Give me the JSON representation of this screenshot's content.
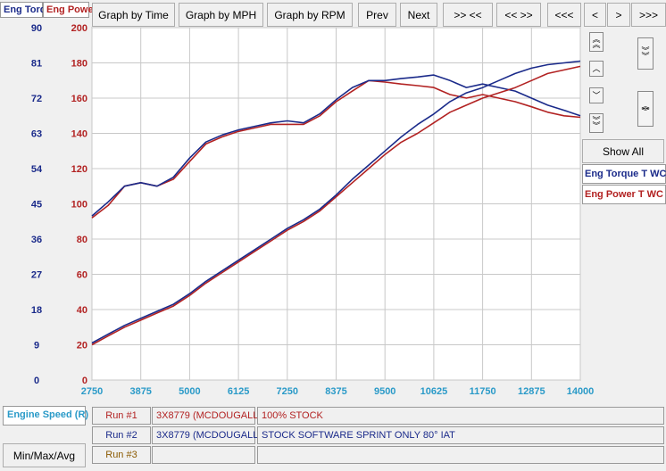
{
  "tabs": {
    "torque": "Eng Torq",
    "power": "Eng Powe"
  },
  "toolbar": {
    "time": "Graph by Time",
    "mph": "Graph by MPH",
    "rpm": "Graph by RPM",
    "prev": "Prev",
    "next": "Next",
    "b1": ">> <<",
    "b2": "<< >>",
    "b3": "<<<",
    "b4": "<",
    "b5": ">",
    "b6": ">>>"
  },
  "right_panel": {
    "show_all": "Show All",
    "legend_torque": "Eng Torque T WC",
    "legend_power": "Eng Power T WC"
  },
  "bottom": {
    "engine_speed": "Engine Speed (R)",
    "minmax": "Min/Max/Avg",
    "runs": [
      {
        "label": "Run #1",
        "id": "3X8779 (MCDOUGALL",
        "desc": "100% STOCK",
        "color": "#b22222"
      },
      {
        "label": "Run #2",
        "id": "3X8779 (MCDOUGALL",
        "desc": "STOCK SOFTWARE SPRINT ONLY 80° IAT",
        "color": "#1a2a8a"
      },
      {
        "label": "Run #3",
        "id": "",
        "desc": "",
        "color": "#8b5a00"
      }
    ]
  },
  "colors": {
    "torque_axis": "#1a2a8a",
    "power_axis": "#b22222",
    "x_axis": "#2a9ac8",
    "grid": "#c8c8c8"
  },
  "chart_data": {
    "type": "line",
    "x": [
      2750,
      3125,
      3500,
      3875,
      4250,
      4625,
      5000,
      5375,
      5750,
      6125,
      6500,
      6875,
      7250,
      7625,
      8000,
      8375,
      8750,
      9125,
      9500,
      9875,
      10250,
      10625,
      11000,
      11375,
      11750,
      12125,
      12500,
      12875,
      13250,
      13625,
      14000
    ],
    "xticks": [
      "2750",
      "3875",
      "5000",
      "6125",
      "7250",
      "8375",
      "9500",
      "10625",
      "11750",
      "12875",
      "14000"
    ],
    "xlim": [
      2750,
      14000
    ],
    "left_axis": {
      "ticks": [
        "90",
        "81",
        "72",
        "63",
        "54",
        "45",
        "36",
        "27",
        "18",
        "9",
        "0"
      ],
      "ylim": [
        0,
        90
      ]
    },
    "right_axis": {
      "ticks": [
        "200",
        "180",
        "160",
        "140",
        "120",
        "100",
        "80",
        "60",
        "40",
        "20",
        "0"
      ],
      "ylim": [
        0,
        200
      ]
    },
    "grid": true,
    "series": [
      {
        "name": "Eng Torque T WC",
        "axis": "left",
        "run": 1,
        "color": "#b22222",
        "values": [
          41.4,
          44.6,
          49.5,
          50.4,
          49.5,
          51.3,
          55.8,
          60.3,
          62.1,
          63.5,
          64.4,
          65.3,
          65.3,
          65.3,
          67.5,
          71.1,
          73.8,
          76.5,
          76.1,
          75.6,
          75.2,
          74.7,
          72.9,
          72,
          72.9,
          72,
          71.1,
          69.8,
          68.4,
          67.5,
          67.1
        ]
      },
      {
        "name": "Eng Torque T WC",
        "axis": "left",
        "run": 2,
        "color": "#1a2a8a",
        "values": [
          41.9,
          45.5,
          49.5,
          50.4,
          49.5,
          51.8,
          56.7,
          60.8,
          62.6,
          63.9,
          64.8,
          65.7,
          66.2,
          65.7,
          68,
          71.6,
          74.7,
          76.5,
          76.5,
          77,
          77.4,
          77.9,
          76.5,
          74.7,
          75.6,
          74.7,
          73.8,
          72,
          70.2,
          68.9,
          67.5
        ]
      },
      {
        "name": "Eng Power T WC",
        "axis": "right",
        "run": 1,
        "color": "#b22222",
        "values": [
          20,
          25,
          30,
          34,
          38,
          42,
          48,
          55,
          61,
          67,
          73,
          79,
          85,
          90,
          96,
          104,
          112,
          120,
          128,
          135,
          140,
          146,
          152,
          156,
          160,
          163,
          166,
          170,
          174,
          176,
          178
        ]
      },
      {
        "name": "Eng Power T WC",
        "axis": "right",
        "run": 2,
        "color": "#1a2a8a",
        "values": [
          21,
          26,
          31,
          35,
          39,
          43,
          49,
          56,
          62,
          68,
          74,
          80,
          86,
          91,
          97,
          105,
          114,
          122,
          130,
          138,
          145,
          151,
          158,
          163,
          166,
          170,
          174,
          177,
          179,
          180,
          181
        ]
      }
    ]
  }
}
